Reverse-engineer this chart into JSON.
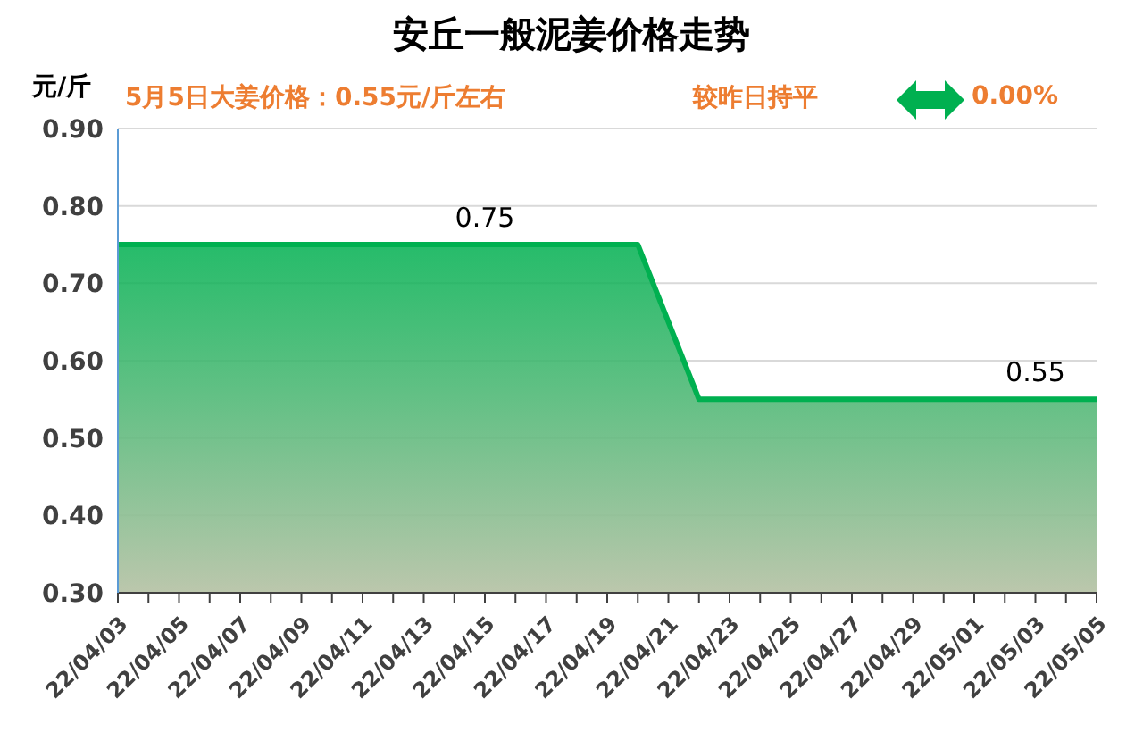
{
  "chart_data": {
    "type": "area",
    "title": "安丘一般泥姜价格走势",
    "ylabel": "元/斤",
    "annotations": [
      "5月5日大姜价格：0.55元/斤左右",
      "较昨日持平",
      "0.00%"
    ],
    "categories": [
      "22/04/03",
      null,
      "22/04/05",
      null,
      "22/04/07",
      null,
      "22/04/09",
      null,
      "22/04/11",
      null,
      "22/04/13",
      null,
      "22/04/15",
      null,
      "22/04/17",
      null,
      "22/04/19",
      null,
      "22/04/21",
      null,
      "22/04/23",
      null,
      "22/04/25",
      null,
      "22/04/27",
      null,
      "22/04/29",
      null,
      "22/05/01",
      null,
      "22/05/03",
      null,
      "22/05/05"
    ],
    "series": [
      {
        "color": "#00b050",
        "values": [
          0.75,
          0.75,
          0.75,
          0.75,
          0.75,
          0.75,
          0.75,
          0.75,
          0.75,
          0.75,
          0.75,
          0.75,
          0.75,
          0.75,
          0.75,
          0.75,
          0.75,
          0.75,
          0.65,
          0.55,
          0.55,
          0.55,
          0.55,
          0.55,
          0.55,
          0.55,
          0.55,
          0.55,
          0.55,
          0.55,
          0.55,
          0.55,
          0.55
        ],
        "value_labels": [
          null,
          null,
          null,
          null,
          null,
          null,
          null,
          null,
          null,
          null,
          null,
          null,
          "0.75",
          null,
          null,
          null,
          null,
          null,
          null,
          null,
          null,
          null,
          null,
          null,
          null,
          null,
          null,
          null,
          null,
          null,
          "0.55",
          null,
          null
        ]
      }
    ],
    "ylim": [
      0.3,
      0.9
    ],
    "yticks": [
      {
        "value": 0.3,
        "label": "0.30"
      },
      {
        "value": 0.4,
        "label": "0.40"
      },
      {
        "value": 0.5,
        "label": "0.50"
      },
      {
        "value": 0.6,
        "label": "0.60"
      },
      {
        "value": 0.7,
        "label": "0.70"
      },
      {
        "value": 0.8,
        "label": "0.80"
      },
      {
        "value": 0.9,
        "label": "0.90"
      }
    ],
    "grid": "y",
    "legend": false,
    "marker": "none",
    "line_style": "solid"
  }
}
